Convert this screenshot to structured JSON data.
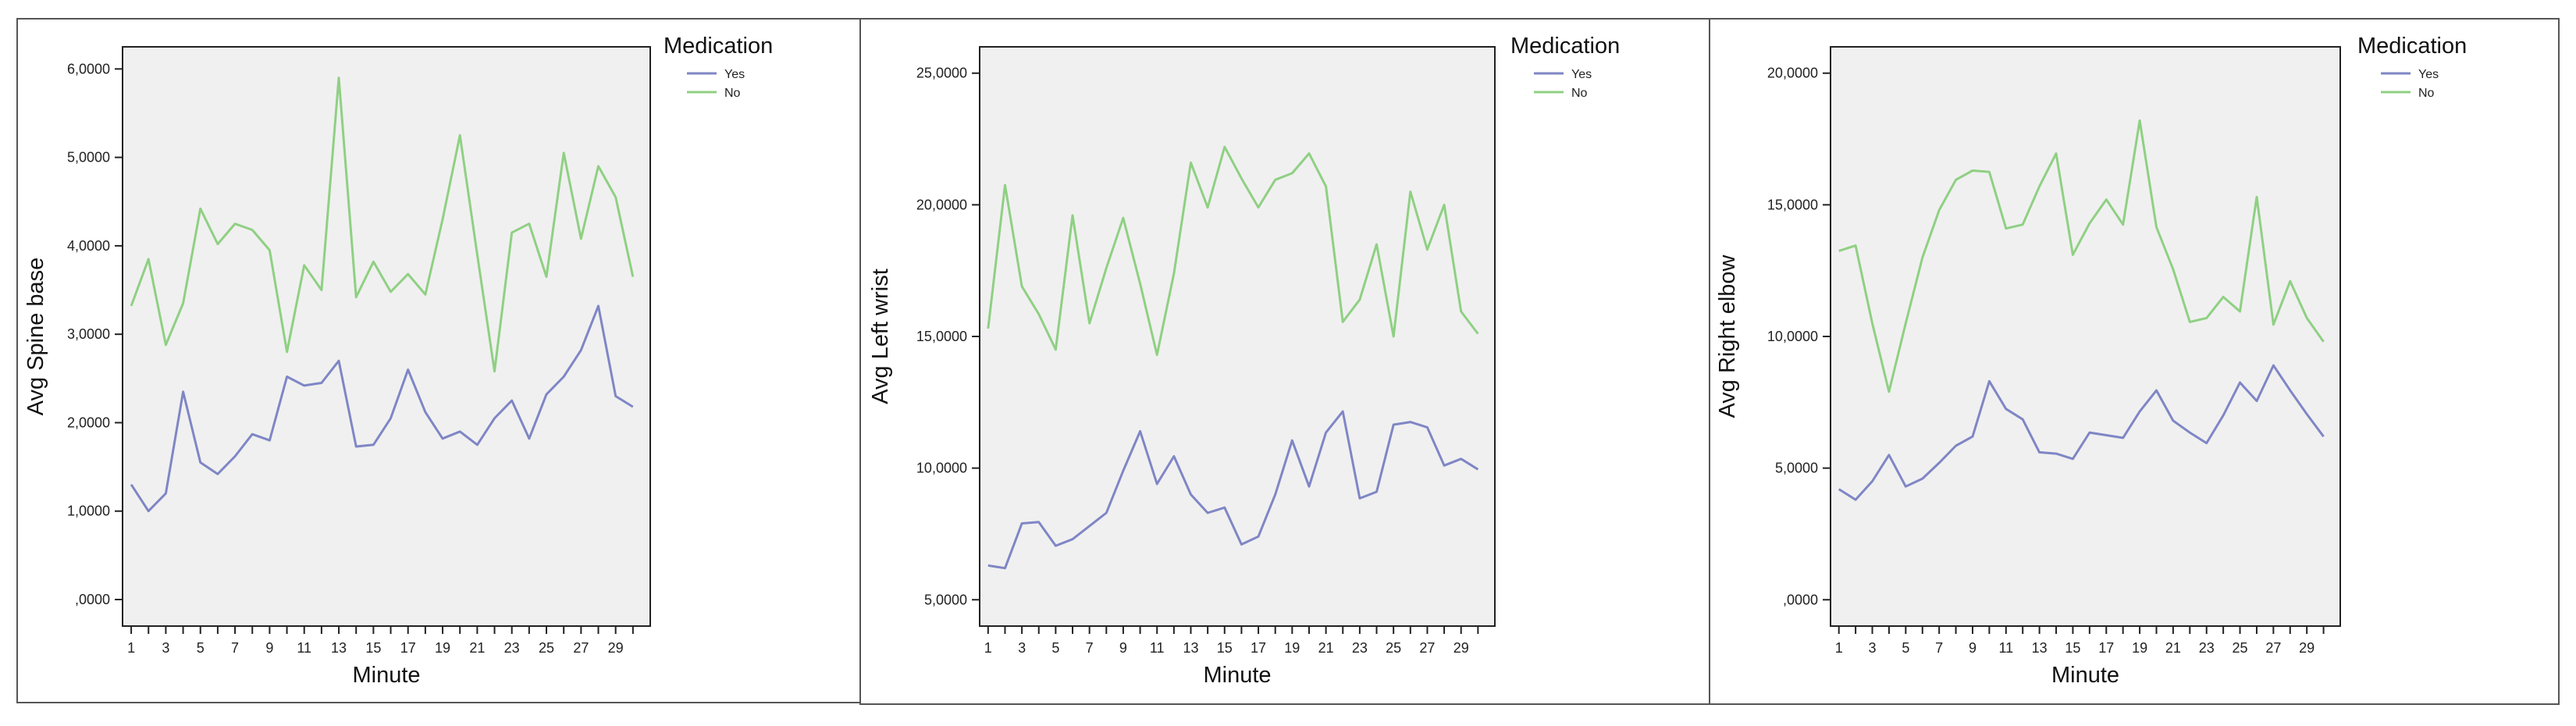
{
  "charts": [
    {
      "ylabel": "Avg Spine base",
      "xlabel": "Minute",
      "legend_title": "Medication",
      "yticks": [
        ",0000",
        "1,0000",
        "2,0000",
        "3,0000",
        "4,0000",
        "5,0000",
        "6,0000"
      ],
      "xticks": [
        "1",
        "3",
        "5",
        "7",
        "9",
        "11",
        "13",
        "15",
        "17",
        "19",
        "21",
        "23",
        "25",
        "27",
        "29"
      ]
    },
    {
      "ylabel": "Avg Left wrist",
      "xlabel": "Minute",
      "legend_title": "Medication",
      "yticks": [
        "5,0000",
        "10,0000",
        "15,0000",
        "20,0000",
        "25,0000"
      ],
      "xticks": [
        "1",
        "3",
        "5",
        "7",
        "9",
        "11",
        "13",
        "15",
        "17",
        "19",
        "21",
        "23",
        "25",
        "27",
        "29"
      ]
    },
    {
      "ylabel": "Avg Right elbow",
      "xlabel": "Minute",
      "legend_title": "Medication",
      "yticks": [
        ",0000",
        "5,0000",
        "10,0000",
        "15,0000",
        "20,0000"
      ],
      "xticks": [
        "1",
        "3",
        "5",
        "7",
        "9",
        "11",
        "13",
        "15",
        "17",
        "19",
        "21",
        "23",
        "25",
        "27",
        "29"
      ]
    }
  ],
  "chart_data": [
    {
      "type": "line",
      "title": "",
      "xlabel": "Minute",
      "ylabel": "Avg Spine base",
      "x": [
        1,
        2,
        3,
        4,
        5,
        6,
        7,
        8,
        9,
        10,
        11,
        12,
        13,
        14,
        15,
        16,
        17,
        18,
        19,
        20,
        21,
        22,
        23,
        24,
        25,
        26,
        27,
        28,
        29,
        30
      ],
      "xlim": [
        0.5,
        31
      ],
      "ylim": [
        -0.3,
        6.25
      ],
      "legend": "right",
      "grid": false,
      "series": [
        {
          "name": "Yes",
          "color": "#7f86c5",
          "values": [
            1.3,
            1.0,
            1.2,
            2.35,
            1.55,
            1.42,
            1.62,
            1.87,
            1.8,
            2.52,
            2.42,
            2.45,
            2.7,
            1.73,
            1.75,
            2.05,
            2.6,
            2.12,
            1.82,
            1.9,
            1.75,
            2.05,
            2.25,
            1.82,
            2.32,
            2.52,
            2.82,
            3.32,
            2.3,
            2.18
          ]
        },
        {
          "name": "No",
          "color": "#8fd083",
          "values": [
            3.32,
            3.85,
            2.88,
            3.35,
            4.42,
            4.02,
            4.25,
            4.18,
            3.95,
            2.8,
            3.78,
            3.5,
            5.9,
            3.42,
            3.82,
            3.48,
            3.68,
            3.45,
            4.3,
            5.25,
            3.9,
            2.58,
            4.15,
            4.25,
            3.65,
            5.05,
            4.08,
            4.9,
            4.55,
            3.65
          ]
        }
      ]
    },
    {
      "type": "line",
      "title": "",
      "xlabel": "Minute",
      "ylabel": "Avg Left wrist",
      "x": [
        1,
        2,
        3,
        4,
        5,
        6,
        7,
        8,
        9,
        10,
        11,
        12,
        13,
        14,
        15,
        16,
        17,
        18,
        19,
        20,
        21,
        22,
        23,
        24,
        25,
        26,
        27,
        28,
        29,
        30
      ],
      "xlim": [
        0.5,
        31
      ],
      "ylim": [
        4.0,
        26.0
      ],
      "legend": "right",
      "grid": false,
      "series": [
        {
          "name": "Yes",
          "color": "#7f86c5",
          "values": [
            6.3,
            6.2,
            7.9,
            7.95,
            7.05,
            7.3,
            7.8,
            8.3,
            9.9,
            11.4,
            9.4,
            10.45,
            9.0,
            8.3,
            8.5,
            7.1,
            7.4,
            9.0,
            11.05,
            9.3,
            11.35,
            12.15,
            8.85,
            9.1,
            11.65,
            11.75,
            11.55,
            10.1,
            10.35,
            9.95
          ]
        },
        {
          "name": "No",
          "color": "#8fd083",
          "values": [
            15.3,
            20.75,
            16.9,
            15.85,
            14.5,
            19.6,
            15.5,
            17.6,
            19.5,
            17.0,
            14.3,
            17.4,
            21.6,
            19.9,
            22.2,
            21.0,
            19.9,
            20.95,
            21.2,
            21.95,
            20.7,
            15.55,
            16.4,
            18.5,
            15.0,
            20.5,
            18.3,
            20.0,
            15.95,
            15.1
          ]
        }
      ]
    },
    {
      "type": "line",
      "title": "",
      "xlabel": "Minute",
      "ylabel": "Avg Right elbow",
      "x": [
        1,
        2,
        3,
        4,
        5,
        6,
        7,
        8,
        9,
        10,
        11,
        12,
        13,
        14,
        15,
        16,
        17,
        18,
        19,
        20,
        21,
        22,
        23,
        24,
        25,
        26,
        27,
        28,
        29,
        30
      ],
      "xlim": [
        0.5,
        31
      ],
      "ylim": [
        -1.0,
        21.0
      ],
      "legend": "right",
      "grid": false,
      "series": [
        {
          "name": "Yes",
          "color": "#7f86c5",
          "values": [
            4.2,
            3.8,
            4.5,
            5.5,
            4.3,
            4.6,
            5.2,
            5.85,
            6.2,
            8.3,
            7.25,
            6.85,
            5.6,
            5.55,
            5.35,
            6.35,
            6.25,
            6.15,
            7.15,
            7.95,
            6.8,
            6.35,
            5.95,
            7.0,
            8.25,
            7.55,
            8.9,
            7.95,
            7.05,
            6.2
          ]
        },
        {
          "name": "No",
          "color": "#8fd083",
          "values": [
            13.25,
            13.45,
            10.5,
            7.9,
            10.5,
            13.0,
            14.8,
            15.95,
            16.3,
            16.25,
            14.1,
            14.25,
            15.7,
            16.95,
            13.1,
            14.3,
            15.2,
            14.25,
            18.2,
            14.15,
            12.55,
            10.55,
            10.7,
            11.5,
            10.95,
            15.3,
            10.45,
            12.1,
            10.7,
            9.8
          ]
        }
      ]
    }
  ]
}
